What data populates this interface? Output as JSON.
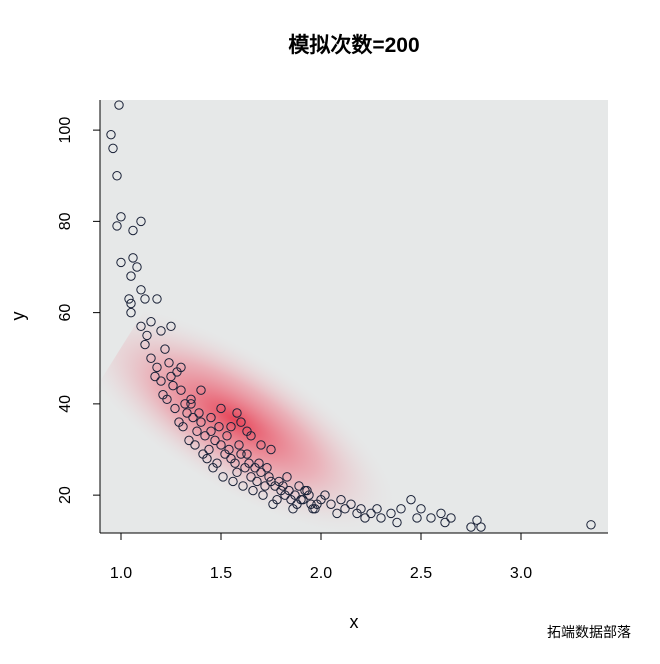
{
  "chart_data": {
    "type": "scatter",
    "title": "模拟次数=200",
    "x_label": "x",
    "y_label": "y",
    "xlim": [
      0.895,
      3.435
    ],
    "ylim": [
      11.7,
      106.6
    ],
    "xticks": [
      {
        "value": 1,
        "label": "1.0"
      },
      1.5,
      {
        "value": 2,
        "label": "2.0"
      },
      2.5,
      {
        "value": 3,
        "label": "3.0"
      }
    ],
    "yticks": [
      20,
      40,
      60,
      80,
      100
    ],
    "color": "#1a2238",
    "watermark": "拓端数据部落",
    "x": [
      0.99,
      0.95,
      0.96,
      0.98,
      1.0,
      0.98,
      1.1,
      1.06,
      1.0,
      1.06,
      1.05,
      1.08,
      1.04,
      1.05,
      1.1,
      1.12,
      1.18,
      1.05,
      1.1,
      1.15,
      1.2,
      1.25,
      1.12,
      1.15,
      1.13,
      1.18,
      1.22,
      1.17,
      1.2,
      1.24,
      1.26,
      1.28,
      1.21,
      1.23,
      1.3,
      1.32,
      1.27,
      1.25,
      1.29,
      1.33,
      1.35,
      1.31,
      1.36,
      1.38,
      1.34,
      1.4,
      1.42,
      1.37,
      1.39,
      1.44,
      1.45,
      1.41,
      1.47,
      1.48,
      1.43,
      1.5,
      1.52,
      1.46,
      1.49,
      1.54,
      1.55,
      1.51,
      1.57,
      1.58,
      1.53,
      1.6,
      1.62,
      1.56,
      1.59,
      1.64,
      1.65,
      1.61,
      1.67,
      1.68,
      1.63,
      1.7,
      1.72,
      1.66,
      1.69,
      1.74,
      1.75,
      1.71,
      1.77,
      1.78,
      1.73,
      1.8,
      1.82,
      1.76,
      1.79,
      1.84,
      1.85,
      1.81,
      1.87,
      1.88,
      1.83,
      1.9,
      1.92,
      1.86,
      1.89,
      1.94,
      1.95,
      1.91,
      1.97,
      1.98,
      1.93,
      2.0,
      2.02,
      1.96,
      2.05,
      2.08,
      2.1,
      2.12,
      2.15,
      2.18,
      2.2,
      2.22,
      2.25,
      2.28,
      2.3,
      2.35,
      2.38,
      2.4,
      2.45,
      2.48,
      2.5,
      2.55,
      2.6,
      2.62,
      2.65,
      2.75,
      2.78,
      2.8,
      3.35,
      1.35,
      1.45,
      1.55,
      1.65,
      1.75,
      1.4,
      1.5,
      1.6,
      1.3,
      1.7,
      1.58,
      1.63
    ],
    "y": [
      105.5,
      99,
      96,
      90,
      81,
      79,
      80,
      78,
      71,
      72,
      68,
      70,
      63,
      62,
      65,
      63,
      63,
      60,
      57,
      58,
      56,
      57,
      53,
      50,
      55,
      48,
      52,
      46,
      45,
      49,
      44,
      47,
      42,
      41,
      43,
      40,
      39,
      46,
      36,
      38,
      41,
      35,
      37,
      34,
      32,
      36,
      33,
      31,
      38,
      30,
      34,
      29,
      32,
      27,
      28,
      31,
      29,
      26,
      35,
      30,
      28,
      24,
      27,
      25,
      33,
      29,
      26,
      23,
      31,
      27,
      24,
      22,
      26,
      23,
      29,
      25,
      22,
      21,
      27,
      24,
      23,
      20,
      22,
      19,
      26,
      21,
      20,
      18,
      23,
      21,
      19,
      22,
      20,
      18,
      24,
      19,
      21,
      17,
      22,
      20,
      18,
      19,
      17,
      18,
      21,
      19,
      20,
      17,
      18,
      16,
      19,
      17,
      18,
      16,
      17,
      15,
      16,
      17,
      15,
      16,
      14,
      17,
      19,
      15,
      17,
      15,
      16,
      14,
      15,
      13,
      14.5,
      13,
      13.5,
      40,
      37,
      35,
      33,
      30,
      43,
      39,
      36,
      48,
      31,
      38,
      34
    ]
  }
}
